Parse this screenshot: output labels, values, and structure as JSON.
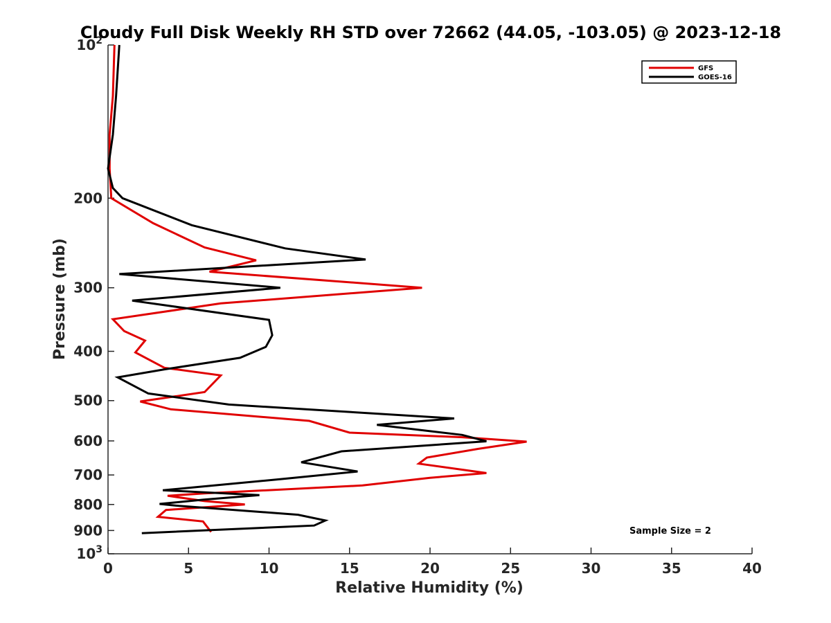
{
  "chart_data": {
    "type": "line",
    "title": "Cloudy Full Disk Weekly RH STD over 72662 (44.05, -103.05) @ 2023-12-18",
    "xlabel": "Relative Humidity (%)",
    "ylabel": "Pressure (mb)",
    "xlim": [
      0,
      40
    ],
    "ylim": [
      100,
      1000
    ],
    "y_scale": "log",
    "y_reversed": true,
    "x_ticks": [
      0,
      5,
      10,
      15,
      20,
      25,
      30,
      35,
      40
    ],
    "y_ticks": [
      {
        "value": 100,
        "label": "10",
        "exp": "2"
      },
      {
        "value": 200,
        "label": "200"
      },
      {
        "value": 300,
        "label": "300"
      },
      {
        "value": 400,
        "label": "400"
      },
      {
        "value": 500,
        "label": "500"
      },
      {
        "value": 600,
        "label": "600"
      },
      {
        "value": 700,
        "label": "700"
      },
      {
        "value": 800,
        "label": "800"
      },
      {
        "value": 900,
        "label": "900"
      },
      {
        "value": 1000,
        "label": "10",
        "exp": "3"
      }
    ],
    "grid": false,
    "legend_position": "top-right",
    "annotation": "Sample Size = 2",
    "series": [
      {
        "name": "GFS",
        "color": "#e00000",
        "points": [
          [
            0.4,
            100
          ],
          [
            0.3,
            126
          ],
          [
            0.1,
            150
          ],
          [
            0.1,
            175
          ],
          [
            0.2,
            200
          ],
          [
            2.8,
            224
          ],
          [
            6.0,
            250
          ],
          [
            9.2,
            265
          ],
          [
            6.3,
            279
          ],
          [
            19.5,
            300
          ],
          [
            7.0,
            322
          ],
          [
            0.3,
            346
          ],
          [
            1.0,
            365
          ],
          [
            2.3,
            381
          ],
          [
            1.7,
            402
          ],
          [
            3.5,
            431
          ],
          [
            7.0,
            446
          ],
          [
            6.0,
            481
          ],
          [
            2.0,
            502
          ],
          [
            3.9,
            520
          ],
          [
            12.5,
            548
          ],
          [
            15.0,
            578
          ],
          [
            22.0,
            590
          ],
          [
            26.0,
            602
          ],
          [
            23.0,
            622
          ],
          [
            19.8,
            647
          ],
          [
            19.3,
            665
          ],
          [
            23.5,
            694
          ],
          [
            20.0,
            709
          ],
          [
            15.8,
            734
          ],
          [
            6.0,
            761
          ],
          [
            3.7,
            769
          ],
          [
            6.0,
            788
          ],
          [
            8.5,
            800
          ],
          [
            3.6,
            820
          ],
          [
            3.1,
            846
          ],
          [
            5.9,
            864
          ],
          [
            6.4,
            906
          ]
        ]
      },
      {
        "name": "GOES-16",
        "color": "#000000",
        "points": [
          [
            0.7,
            100
          ],
          [
            0.5,
            126
          ],
          [
            0.3,
            150
          ],
          [
            0.0,
            175
          ],
          [
            0.3,
            191
          ],
          [
            0.9,
            200
          ],
          [
            5.2,
            226
          ],
          [
            11.0,
            251
          ],
          [
            16.0,
            264
          ],
          [
            0.7,
            282
          ],
          [
            10.7,
            300
          ],
          [
            1.5,
            318
          ],
          [
            10.0,
            347
          ],
          [
            10.2,
            372
          ],
          [
            9.8,
            392
          ],
          [
            8.2,
            412
          ],
          [
            3.5,
            434
          ],
          [
            0.6,
            450
          ],
          [
            2.5,
            484
          ],
          [
            7.5,
            509
          ],
          [
            21.5,
            542
          ],
          [
            16.7,
            558
          ],
          [
            22.0,
            584
          ],
          [
            23.5,
            601
          ],
          [
            14.5,
            629
          ],
          [
            12.0,
            661
          ],
          [
            15.5,
            689
          ],
          [
            10.8,
            713
          ],
          [
            5.4,
            740
          ],
          [
            3.4,
            750
          ],
          [
            9.4,
            767
          ],
          [
            5.9,
            783
          ],
          [
            3.2,
            798
          ],
          [
            4.4,
            805
          ],
          [
            11.8,
            838
          ],
          [
            13.5,
            860
          ],
          [
            12.8,
            880
          ],
          [
            2.1,
            911
          ]
        ]
      }
    ]
  }
}
